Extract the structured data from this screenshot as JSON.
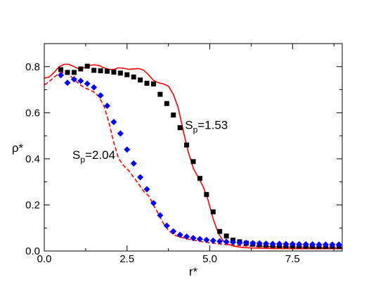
{
  "chart_data": {
    "type": "scatter",
    "xlabel": "r*",
    "ylabel": "ρ*",
    "xlim": [
      0,
      9
    ],
    "ylim": [
      0,
      0.9
    ],
    "xticks": [
      0.0,
      2.5,
      5.0,
      7.5
    ],
    "xtick_labels": [
      "0.0",
      "2.5",
      "5.0",
      "7.5"
    ],
    "yticks": [
      0.0,
      0.2,
      0.4,
      0.6,
      0.8
    ],
    "ytick_labels": [
      "0.0",
      "0.2",
      "0.4",
      "0.6",
      "0.8"
    ],
    "grid": false,
    "legend": "none",
    "annotations": [
      {
        "base": "S",
        "sub": "p",
        "rest": "=1.53",
        "x": 4.25,
        "y": 0.53
      },
      {
        "base": "S",
        "sub": "p",
        "rest": "=2.04",
        "x": 0.85,
        "y": 0.4
      }
    ],
    "series": [
      {
        "kind": "markers",
        "marker": "square",
        "color": "#000000",
        "x": [
          0.5,
          0.7,
          0.9,
          1.1,
          1.3,
          1.5,
          1.7,
          1.9,
          2.1,
          2.3,
          2.5,
          2.7,
          2.9,
          3.1,
          3.3,
          3.5,
          3.7,
          3.9,
          4.1,
          4.3,
          4.5,
          4.7,
          4.9,
          5.1,
          5.3,
          5.5,
          5.7,
          5.9,
          6.1,
          6.3,
          6.5,
          6.7,
          6.9,
          7.1,
          7.3,
          7.5,
          7.7,
          7.9,
          8.1,
          8.3,
          8.5,
          8.7,
          8.9
        ],
        "y": [
          0.787,
          0.775,
          0.775,
          0.79,
          0.802,
          0.784,
          0.782,
          0.78,
          0.776,
          0.772,
          0.765,
          0.755,
          0.742,
          0.728,
          0.725,
          0.68,
          0.64,
          0.59,
          0.535,
          0.46,
          0.388,
          0.315,
          0.245,
          0.17,
          0.085,
          0.065,
          0.047,
          0.04,
          0.034,
          0.03,
          0.027,
          0.025,
          0.024,
          0.023,
          0.022,
          0.022,
          0.021,
          0.021,
          0.02,
          0.02,
          0.02,
          0.02,
          0.02
        ]
      },
      {
        "kind": "markers",
        "marker": "diamond",
        "color": "#0000ff",
        "x": [
          0.5,
          0.7,
          0.9,
          1.1,
          1.3,
          1.5,
          1.7,
          1.9,
          2.1,
          2.3,
          2.5,
          2.7,
          2.9,
          3.1,
          3.3,
          3.5,
          3.7,
          3.9,
          4.1,
          4.3,
          4.5,
          4.7,
          4.9,
          5.1,
          5.3,
          5.5,
          5.7,
          5.9,
          6.1,
          6.3,
          6.5,
          6.7,
          6.9,
          7.1,
          7.3,
          7.5,
          7.7,
          7.9,
          8.1,
          8.3,
          8.5,
          8.7,
          8.9
        ],
        "y": [
          0.763,
          0.73,
          0.745,
          0.738,
          0.726,
          0.71,
          0.675,
          0.63,
          0.56,
          0.51,
          0.44,
          0.38,
          0.32,
          0.268,
          0.208,
          0.155,
          0.11,
          0.085,
          0.07,
          0.062,
          0.056,
          0.052,
          0.048,
          0.045,
          0.042,
          0.04,
          0.038,
          0.036,
          0.035,
          0.034,
          0.033,
          0.032,
          0.031,
          0.031,
          0.03,
          0.03,
          0.029,
          0.029,
          0.029,
          0.028,
          0.028,
          0.028,
          0.028
        ]
      },
      {
        "kind": "line",
        "style": "solid",
        "color": "#ff0000",
        "x": [
          0.0,
          0.15,
          0.3,
          0.45,
          0.6,
          0.75,
          0.9,
          1.05,
          1.2,
          1.35,
          1.5,
          1.65,
          1.8,
          1.95,
          2.1,
          2.25,
          2.4,
          2.55,
          2.7,
          2.85,
          3.0,
          3.15,
          3.3,
          3.45,
          3.6,
          3.75,
          3.9,
          4.05,
          4.2,
          4.35,
          4.5,
          4.65,
          4.8,
          4.95,
          5.1,
          5.25,
          5.4,
          5.55,
          5.7,
          5.85,
          6.0,
          6.3,
          6.6,
          6.9,
          7.2,
          7.5,
          8.0,
          8.5,
          9.0
        ],
        "y": [
          0.75,
          0.755,
          0.775,
          0.8,
          0.81,
          0.81,
          0.8,
          0.79,
          0.795,
          0.805,
          0.808,
          0.805,
          0.795,
          0.788,
          0.788,
          0.795,
          0.793,
          0.788,
          0.79,
          0.792,
          0.785,
          0.765,
          0.74,
          0.73,
          0.725,
          0.715,
          0.68,
          0.62,
          0.52,
          0.43,
          0.36,
          0.32,
          0.28,
          0.22,
          0.14,
          0.08,
          0.045,
          0.03,
          0.022,
          0.018,
          0.015,
          0.013,
          0.012,
          0.011,
          0.011,
          0.01,
          0.01,
          0.01,
          0.01
        ]
      },
      {
        "kind": "line",
        "style": "dashed",
        "color": "#ff0000",
        "x": [
          0.0,
          0.15,
          0.3,
          0.45,
          0.6,
          0.75,
          0.9,
          1.05,
          1.2,
          1.35,
          1.5,
          1.65,
          1.8,
          1.95,
          2.1,
          2.25,
          2.4,
          2.55,
          2.7,
          2.85,
          3.0,
          3.15,
          3.3,
          3.45,
          3.6,
          3.75,
          3.9,
          4.05,
          4.2,
          4.4,
          4.6,
          4.8,
          5.0,
          5.2,
          5.5,
          5.8,
          6.1,
          6.5,
          7.0,
          7.5,
          8.0,
          8.5,
          9.0
        ],
        "y": [
          0.72,
          0.735,
          0.755,
          0.77,
          0.775,
          0.765,
          0.745,
          0.725,
          0.71,
          0.7,
          0.69,
          0.67,
          0.63,
          0.56,
          0.47,
          0.4,
          0.37,
          0.35,
          0.32,
          0.29,
          0.26,
          0.24,
          0.2,
          0.16,
          0.12,
          0.09,
          0.072,
          0.063,
          0.057,
          0.05,
          0.045,
          0.04,
          0.036,
          0.032,
          0.028,
          0.025,
          0.022,
          0.02,
          0.018,
          0.017,
          0.016,
          0.015,
          0.015
        ]
      }
    ]
  }
}
